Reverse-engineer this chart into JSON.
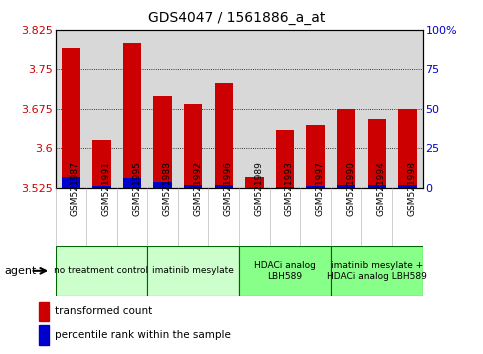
{
  "title": "GDS4047 / 1561886_a_at",
  "samples": [
    "GSM521987",
    "GSM521991",
    "GSM521995",
    "GSM521988",
    "GSM521992",
    "GSM521996",
    "GSM521989",
    "GSM521993",
    "GSM521997",
    "GSM521990",
    "GSM521994",
    "GSM521998"
  ],
  "red_values": [
    3.79,
    3.615,
    3.8,
    3.7,
    3.685,
    3.725,
    3.545,
    3.635,
    3.645,
    3.675,
    3.655,
    3.675
  ],
  "blue_values": [
    3.545,
    3.528,
    3.543,
    3.535,
    3.53,
    3.53,
    3.525,
    3.527,
    3.528,
    3.53,
    3.53,
    3.53
  ],
  "ymin": 3.525,
  "ymax": 3.825,
  "yticks": [
    3.525,
    3.6,
    3.675,
    3.75,
    3.825
  ],
  "ytick_labels": [
    "3.525",
    "3.6",
    "3.675",
    "3.75",
    "3.825"
  ],
  "right_yticks": [
    0,
    25,
    50,
    75,
    100
  ],
  "right_ytick_labels": [
    "0",
    "25",
    "50",
    "75",
    "100%"
  ],
  "groups": [
    {
      "label": "no treatment control",
      "start": 0,
      "end": 3,
      "color": "#ccffcc"
    },
    {
      "label": "imatinib mesylate",
      "start": 3,
      "end": 6,
      "color": "#ccffcc"
    },
    {
      "label": "HDACi analog\nLBH589",
      "start": 6,
      "end": 9,
      "color": "#88ff88"
    },
    {
      "label": "imatinib mesylate +\nHDACi analog LBH589",
      "start": 9,
      "end": 12,
      "color": "#88ff88"
    }
  ],
  "bar_width": 0.6,
  "red_color": "#cc0000",
  "blue_color": "#0000cc",
  "axis_label_color_left": "#cc0000",
  "axis_label_color_right": "#0000cc",
  "plot_bg_color": "#d8d8d8",
  "grid_color": "#000000",
  "group_border_color": "#006600",
  "agent_arrow_color": "#333333"
}
